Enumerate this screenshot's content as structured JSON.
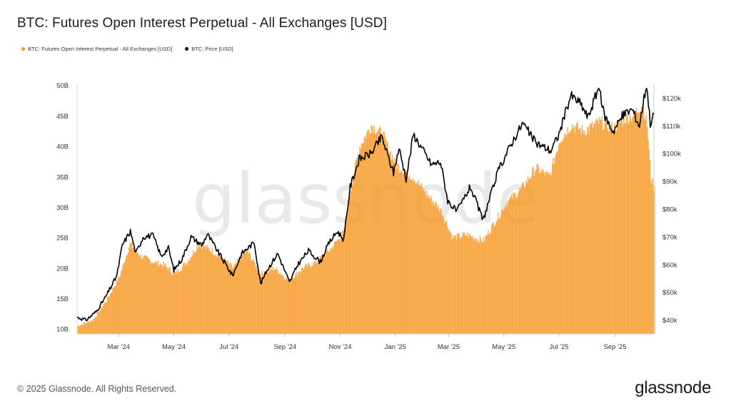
{
  "title": "BTC: Futures Open Interest Perpetual - All Exchanges [USD]",
  "legend": [
    {
      "label": "BTC: Futures Open Interest Perpetual - All Exchanges [USD]",
      "color": "#f7931a"
    },
    {
      "label": "BTC: Price [USD]",
      "color": "#000000"
    }
  ],
  "watermark": "glassnode",
  "footer": {
    "copyright": "© 2025 Glassnode. All Rights Reserved.",
    "logo": "glassnode"
  },
  "chart_data": {
    "type": "area",
    "x_tick_labels": [
      "Mar '24",
      "May '24",
      "Jul '24",
      "Sep '24",
      "Nov '24",
      "Jan '25",
      "Mar '25",
      "May '25",
      "Jul '25",
      "Sep '25"
    ],
    "y_left_tick_labels": [
      "10B",
      "15B",
      "20B",
      "25B",
      "30B",
      "35B",
      "40B",
      "45B",
      "50B"
    ],
    "y_right_tick_labels": [
      "$40k",
      "$50k",
      "$60k",
      "$70k",
      "$80k",
      "$90k",
      "$100k",
      "$110k",
      "$120k"
    ],
    "ylim_left": [
      9.2,
      50.2
    ],
    "ylim_right": [
      35000,
      125000
    ],
    "x_range": [
      "2024-01-15",
      "2025-10-14"
    ],
    "series": [
      {
        "name": "BTC: Futures Open Interest Perpetual - All Exchanges [USD]",
        "axis": "left",
        "color": "#f7931a",
        "x": [
          "2024-01-15",
          "2024-02-01",
          "2024-02-15",
          "2024-03-01",
          "2024-03-13",
          "2024-03-25",
          "2024-04-08",
          "2024-04-20",
          "2024-05-01",
          "2024-05-15",
          "2024-05-28",
          "2024-06-10",
          "2024-06-25",
          "2024-07-05",
          "2024-07-20",
          "2024-08-05",
          "2024-08-20",
          "2024-09-05",
          "2024-09-20",
          "2024-10-05",
          "2024-10-20",
          "2024-11-05",
          "2024-11-12",
          "2024-11-22",
          "2024-12-05",
          "2024-12-17",
          "2025-01-01",
          "2025-01-20",
          "2025-02-05",
          "2025-02-20",
          "2025-03-05",
          "2025-03-20",
          "2025-04-08",
          "2025-04-22",
          "2025-05-05",
          "2025-05-20",
          "2025-06-05",
          "2025-06-20",
          "2025-07-01",
          "2025-07-14",
          "2025-07-28",
          "2025-08-14",
          "2025-08-30",
          "2025-09-10",
          "2025-09-20",
          "2025-10-01",
          "2025-10-06",
          "2025-10-10",
          "2025-10-14"
        ],
        "values": [
          10.5,
          11.5,
          14.5,
          18.5,
          24.0,
          22.0,
          21.0,
          20.5,
          19.0,
          21.0,
          24.0,
          23.0,
          21.5,
          20.0,
          23.0,
          19.0,
          20.0,
          18.0,
          20.0,
          21.0,
          23.0,
          26.0,
          33.0,
          40.0,
          43.5,
          42.0,
          37.0,
          35.0,
          32.0,
          29.5,
          25.0,
          25.5,
          24.5,
          28.0,
          31.0,
          33.0,
          36.5,
          35.0,
          41.0,
          43.5,
          42.5,
          44.0,
          43.0,
          44.5,
          45.0,
          47.0,
          43.5,
          35.0,
          33.0
        ]
      },
      {
        "name": "BTC: Price [USD]",
        "axis": "right",
        "color": "#000000",
        "x": [
          "2024-01-15",
          "2024-01-25",
          "2024-02-05",
          "2024-02-15",
          "2024-02-28",
          "2024-03-05",
          "2024-03-14",
          "2024-03-20",
          "2024-03-28",
          "2024-04-08",
          "2024-04-17",
          "2024-04-25",
          "2024-05-01",
          "2024-05-10",
          "2024-05-20",
          "2024-06-01",
          "2024-06-07",
          "2024-06-20",
          "2024-07-05",
          "2024-07-15",
          "2024-07-29",
          "2024-08-05",
          "2024-08-12",
          "2024-08-24",
          "2024-09-06",
          "2024-09-15",
          "2024-09-27",
          "2024-10-10",
          "2024-10-20",
          "2024-10-29",
          "2024-11-05",
          "2024-11-12",
          "2024-11-22",
          "2024-12-05",
          "2024-12-17",
          "2024-12-30",
          "2025-01-05",
          "2025-01-13",
          "2025-01-21",
          "2025-02-01",
          "2025-02-10",
          "2025-02-20",
          "2025-02-28",
          "2025-03-10",
          "2025-03-25",
          "2025-04-08",
          "2025-04-25",
          "2025-05-10",
          "2025-05-22",
          "2025-06-05",
          "2025-06-22",
          "2025-07-01",
          "2025-07-14",
          "2025-07-25",
          "2025-08-02",
          "2025-08-14",
          "2025-08-20",
          "2025-08-30",
          "2025-09-10",
          "2025-09-20",
          "2025-09-28",
          "2025-10-03",
          "2025-10-06",
          "2025-10-10",
          "2025-10-14"
        ],
        "values": [
          41000,
          40000,
          43000,
          48000,
          56000,
          67000,
          72000,
          64000,
          70000,
          70500,
          63000,
          66000,
          58000,
          62000,
          70000,
          67000,
          71000,
          64000,
          56000,
          64000,
          68000,
          53000,
          58000,
          64000,
          53500,
          60000,
          65000,
          61000,
          68000,
          72000,
          69000,
          88000,
          98000,
          100000,
          106000,
          93000,
          102000,
          91000,
          107000,
          101000,
          96000,
          97000,
          83000,
          79000,
          88000,
          76000,
          94000,
          104000,
          111000,
          104000,
          101000,
          107000,
          121000,
          118000,
          113000,
          124000,
          114000,
          108000,
          114000,
          116000,
          110000,
          120000,
          125000,
          111000,
          114000
        ]
      }
    ]
  }
}
